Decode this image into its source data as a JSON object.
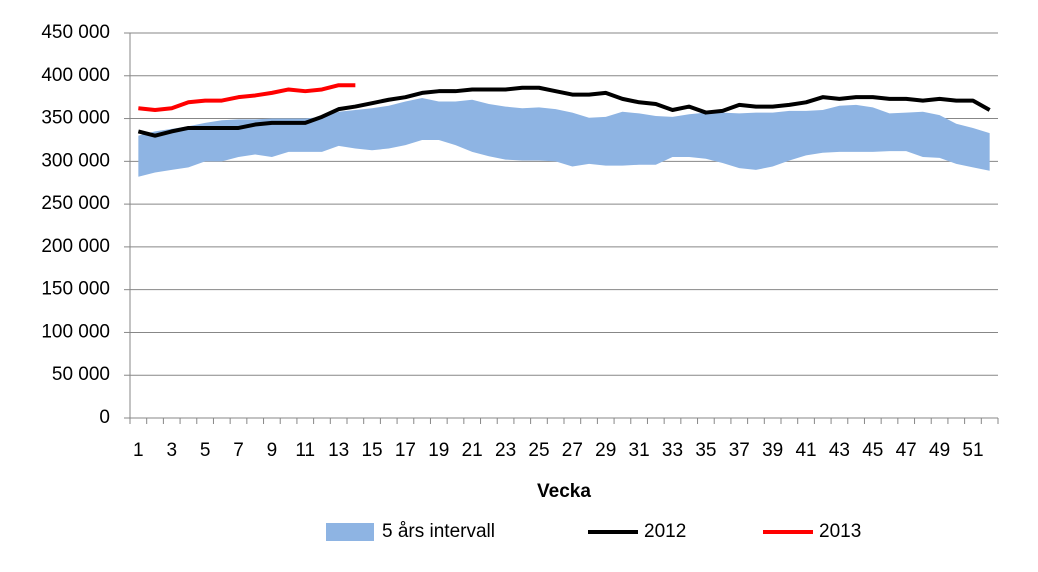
{
  "chart_data": {
    "type": "line",
    "x_label": "Vecka",
    "categories": [
      1,
      null,
      3,
      null,
      5,
      null,
      7,
      null,
      9,
      null,
      11,
      null,
      13,
      null,
      15,
      null,
      17,
      null,
      19,
      null,
      21,
      null,
      23,
      null,
      25,
      null,
      27,
      null,
      29,
      null,
      31,
      null,
      33,
      null,
      35,
      null,
      37,
      null,
      39,
      null,
      41,
      null,
      43,
      null,
      45,
      null,
      47,
      null,
      49,
      null,
      51,
      null
    ],
    "ylim": [
      0,
      450000
    ],
    "yticks": [
      0,
      {
        "value": 50000,
        "label": "50 000"
      },
      {
        "value": 100000,
        "label": "100 000"
      },
      {
        "value": 150000,
        "label": "150 000"
      },
      {
        "value": 200000,
        "label": "200 000"
      },
      {
        "value": 250000,
        "label": "250 000"
      },
      {
        "value": 300000,
        "label": "300 000"
      },
      {
        "value": 350000,
        "label": "350 000"
      },
      {
        "value": 400000,
        "label": "400 000"
      },
      {
        "value": 450000,
        "label": "450 000"
      }
    ],
    "grid": true,
    "legend": "bottom",
    "series": [
      {
        "name": "5 års intervall",
        "type": "band",
        "color": "#8eb4e3",
        "low": [
          282000,
          287000,
          290000,
          293000,
          300000,
          300000,
          305000,
          308000,
          305000,
          311000,
          311000,
          311000,
          318000,
          315000,
          313000,
          315000,
          319000,
          325000,
          325000,
          319000,
          311000,
          306000,
          302000,
          301000,
          301000,
          300000,
          294000,
          297000,
          295000,
          295000,
          296000,
          296000,
          305000,
          305000,
          303000,
          298000,
          292000,
          290000,
          294000,
          301000,
          307000,
          310000,
          311000,
          311000,
          311000,
          312000,
          312000,
          305000,
          304000,
          297000,
          293000,
          289000
        ],
        "high": [
          330000,
          335000,
          338000,
          341000,
          345000,
          348000,
          349000,
          349000,
          350000,
          350000,
          350000,
          352000,
          358000,
          360000,
          362000,
          365000,
          370000,
          374000,
          370000,
          370000,
          372000,
          367000,
          364000,
          362000,
          363000,
          361000,
          357000,
          351000,
          352000,
          358000,
          356000,
          353000,
          352000,
          355000,
          357000,
          357000,
          356000,
          357000,
          357000,
          359000,
          359000,
          360000,
          365000,
          366000,
          363000,
          356000,
          357000,
          358000,
          354000,
          344000,
          339000,
          333000
        ]
      },
      {
        "name": "2012",
        "color": "#000000",
        "values": [
          335000,
          330000,
          335000,
          339000,
          339000,
          339000,
          339000,
          343000,
          345000,
          345000,
          345000,
          352000,
          361000,
          364000,
          368000,
          372000,
          375000,
          380000,
          382000,
          382000,
          384000,
          384000,
          384000,
          386000,
          386000,
          382000,
          378000,
          378000,
          380000,
          373000,
          369000,
          367000,
          360000,
          364000,
          357000,
          359000,
          366000,
          364000,
          364000,
          366000,
          369000,
          375000,
          373000,
          375000,
          375000,
          373000,
          373000,
          371000,
          373000,
          371000,
          371000,
          360000
        ]
      },
      {
        "name": "2013",
        "color": "#ff0000",
        "values": [
          362000,
          360000,
          362000,
          369000,
          371000,
          371000,
          375000,
          377000,
          380000,
          384000,
          382000,
          384000,
          389000,
          389000,
          null,
          null,
          null,
          null,
          null,
          null,
          null,
          null,
          null,
          null,
          null,
          null,
          null,
          null,
          null,
          null,
          null,
          null,
          null,
          null,
          null,
          null,
          null,
          null,
          null,
          null,
          null,
          null,
          null,
          null,
          null,
          null,
          null,
          null,
          null,
          null,
          null,
          null
        ]
      }
    ]
  }
}
